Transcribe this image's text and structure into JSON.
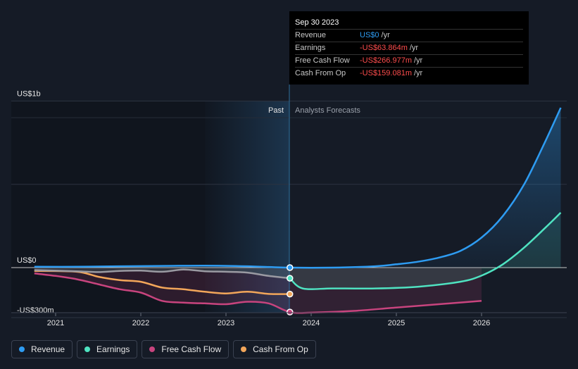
{
  "tooltip": {
    "date": "Sep 30 2023",
    "rows": [
      {
        "label": "Revenue",
        "value": "US$0",
        "unit": "/yr"
      },
      {
        "label": "Earnings",
        "value": "-US$63.864m",
        "unit": "/yr"
      },
      {
        "label": "Free Cash Flow",
        "value": "-US$266.977m",
        "unit": "/yr"
      },
      {
        "label": "Cash From Op",
        "value": "-US$159.081m",
        "unit": "/yr"
      }
    ]
  },
  "sections": {
    "past": "Past",
    "forecast": "Analysts Forecasts"
  },
  "colors": {
    "revenue": "#2e9cf2",
    "earnings": "#4fe3c1",
    "fcf": "#c8447e",
    "cfo": "#f2a65a",
    "background": "#151b26"
  },
  "legend": [
    {
      "label": "Revenue",
      "color": "#2e9cf2"
    },
    {
      "label": "Earnings",
      "color": "#4fe3c1"
    },
    {
      "label": "Free Cash Flow",
      "color": "#c8447e"
    },
    {
      "label": "Cash From Op",
      "color": "#f2a65a"
    }
  ],
  "chart_data": {
    "type": "line",
    "title": "",
    "xlabel": "",
    "ylabel": "",
    "y_tick_labels": [
      "US$1b",
      "US$0",
      "-US$300m"
    ],
    "x_tick_labels": [
      "2021",
      "2022",
      "2023",
      "2024",
      "2025",
      "2026"
    ],
    "ylim": [
      -300,
      1000
    ],
    "y_unit": "US$m",
    "past_end": 2023.75,
    "series": [
      {
        "name": "Revenue",
        "key": "revenue",
        "x": [
          2020.75,
          2021.25,
          2021.75,
          2022.25,
          2022.75,
          2023.25,
          2023.75,
          2024.25,
          2024.75,
          2025.0,
          2025.25,
          2025.5,
          2025.75,
          2026.0,
          2026.25,
          2026.5,
          2026.75,
          2026.93
        ],
        "y": [
          5,
          5,
          8,
          10,
          12,
          8,
          0,
          0,
          8,
          20,
          35,
          60,
          100,
          180,
          310,
          500,
          760,
          960
        ]
      },
      {
        "name": "Earnings",
        "key": "earnings",
        "x": [
          2020.75,
          2021.25,
          2021.5,
          2021.75,
          2022.0,
          2022.25,
          2022.5,
          2022.75,
          2023.0,
          2023.25,
          2023.5,
          2023.75,
          2023.9,
          2024.25,
          2024.75,
          2025.25,
          2025.75,
          2026.0,
          2026.25,
          2026.5,
          2026.75,
          2026.93
        ],
        "y": [
          -15,
          -22,
          -27,
          -20,
          -18,
          -25,
          -12,
          -22,
          -25,
          -30,
          -50,
          -64,
          -125,
          -125,
          -125,
          -115,
          -85,
          -48,
          20,
          120,
          240,
          330
        ]
      },
      {
        "name": "Free Cash Flow",
        "key": "fcf",
        "x": [
          2020.75,
          2021.0,
          2021.25,
          2021.5,
          2021.75,
          2022.0,
          2022.25,
          2022.5,
          2022.75,
          2023.0,
          2023.25,
          2023.5,
          2023.75,
          2024.0,
          2024.5,
          2025.0,
          2025.5,
          2026.0
        ],
        "y": [
          -35,
          -50,
          -70,
          -100,
          -130,
          -150,
          -200,
          -210,
          -215,
          -220,
          -205,
          -215,
          -267,
          -270,
          -260,
          -240,
          -220,
          -200
        ]
      },
      {
        "name": "Cash From Op",
        "key": "cfo",
        "x": [
          2020.75,
          2021.25,
          2021.5,
          2021.75,
          2022.0,
          2022.25,
          2022.5,
          2022.75,
          2023.0,
          2023.25,
          2023.5,
          2023.75
        ],
        "y": [
          -20,
          -25,
          -55,
          -75,
          -85,
          -120,
          -130,
          -145,
          -155,
          -145,
          -158,
          -159
        ]
      }
    ],
    "grid": true,
    "legend_position": "bottom-left"
  }
}
